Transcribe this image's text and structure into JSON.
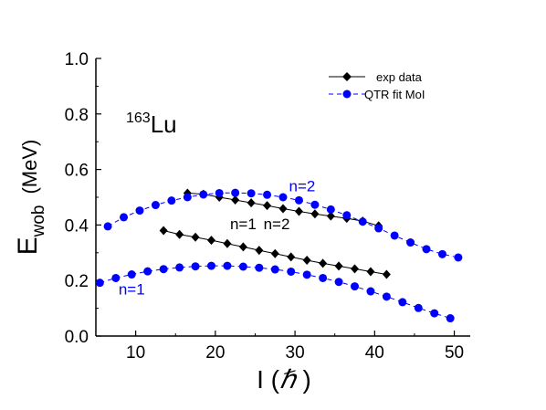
{
  "chart_data": {
    "type": "scatter",
    "title": "",
    "xlabel": "I (ℏ )",
    "xlabel_main": "I (",
    "xlabel_hbar": "ℏ",
    "xlabel_close": " )",
    "ylabel": "Ewob (MeV)",
    "ylabel_main": "E",
    "ylabel_sub": "wob",
    "ylabel_unit": "(MeV)",
    "xlim": [
      5,
      52
    ],
    "ylim": [
      0.0,
      1.0
    ],
    "xticks": [
      "10",
      "20",
      "30",
      "40",
      "50"
    ],
    "xtick_values": [
      10,
      20,
      30,
      40,
      50
    ],
    "yticks": [
      "0.0",
      "0.2",
      "0.4",
      "0.6",
      "0.8",
      "1.0"
    ],
    "ytick_values": [
      0.0,
      0.2,
      0.4,
      0.6,
      0.8,
      1.0
    ],
    "grid": false,
    "legend_position": "top-right",
    "nucleus_mass": "163",
    "nucleus_symbol": "Lu",
    "series": [
      {
        "name": "exp data",
        "marker": "diamond",
        "color": "#000000",
        "line": "solid",
        "groups": [
          {
            "x": [
              13.5,
              15.5,
              17.5,
              19.5,
              21.5,
              23.5,
              25.5,
              27.5,
              29.5,
              31.5,
              33.5,
              35.5,
              37.5,
              39.5,
              41.5
            ],
            "y": [
              0.38,
              0.366,
              0.356,
              0.345,
              0.333,
              0.321,
              0.309,
              0.297,
              0.285,
              0.273,
              0.262,
              0.252,
              0.242,
              0.232,
              0.222
            ]
          },
          {
            "x": [
              16.5,
              18.5,
              20.5,
              22.5,
              24.5,
              26.5,
              28.5,
              30.5,
              32.5,
              34.5,
              36.5,
              38.5,
              40.5
            ],
            "y": [
              0.515,
              0.511,
              0.5,
              0.49,
              0.48,
              0.47,
              0.459,
              0.449,
              0.44,
              0.432,
              0.424,
              0.414,
              0.397
            ]
          }
        ]
      },
      {
        "name": "QTR fit MoI",
        "marker": "circle",
        "color": "#0000ff",
        "line": "dashed",
        "groups": [
          {
            "x": [
              5.5,
              7.5,
              9.5,
              11.5,
              13.5,
              15.5,
              17.5,
              19.5,
              21.5,
              23.5,
              25.5,
              27.5,
              29.5,
              31.5,
              33.5,
              35.5,
              37.5,
              39.5,
              41.5,
              43.5,
              45.5,
              47.5,
              49.5
            ],
            "y": [
              0.192,
              0.209,
              0.222,
              0.233,
              0.241,
              0.247,
              0.251,
              0.253,
              0.253,
              0.25,
              0.246,
              0.24,
              0.232,
              0.221,
              0.209,
              0.195,
              0.179,
              0.161,
              0.142,
              0.122,
              0.101,
              0.082,
              0.064
            ]
          },
          {
            "x": [
              6.5,
              8.5,
              10.5,
              12.5,
              14.5,
              16.5,
              18.5,
              20.5,
              22.5,
              24.5,
              26.5,
              28.5,
              30.5,
              32.5,
              34.5,
              36.5,
              38.5,
              40.5,
              42.5,
              44.5,
              46.5,
              48.5,
              50.5
            ],
            "y": [
              0.395,
              0.428,
              0.452,
              0.472,
              0.488,
              0.5,
              0.51,
              0.515,
              0.516,
              0.514,
              0.509,
              0.5,
              0.489,
              0.473,
              0.456,
              0.435,
              0.412,
              0.388,
              0.362,
              0.337,
              0.313,
              0.295,
              0.283
            ]
          }
        ]
      }
    ],
    "annotations": [
      {
        "text": "n=1",
        "x": 23.5,
        "y": 0.385,
        "color": "#000000"
      },
      {
        "text": "n=2",
        "x": 27.7,
        "y": 0.385,
        "color": "#000000"
      },
      {
        "text": "n=2",
        "x": 30.9,
        "y": 0.522,
        "color": "#0000ff"
      },
      {
        "text": "n=1",
        "x": 9.5,
        "y": 0.15,
        "color": "#0000ff"
      }
    ]
  }
}
